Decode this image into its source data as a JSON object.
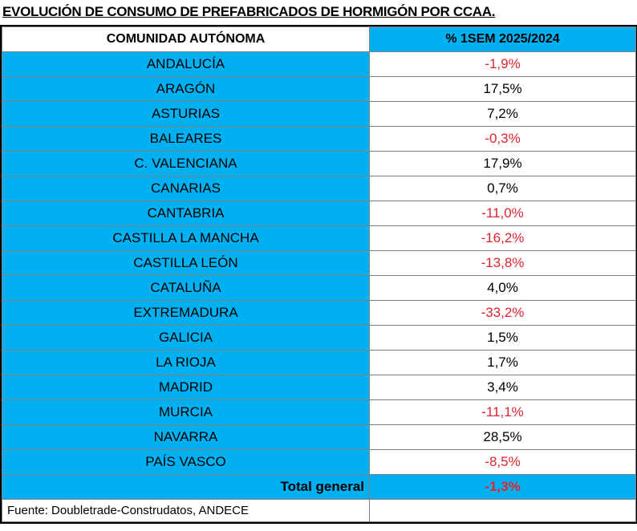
{
  "title": "EVOLUCIÓN DE CONSUMO DE PREFABRICADOS DE HORMIGÓN POR CCAA.",
  "table": {
    "header": [
      "COMUNIDAD AUTÓNOMA",
      "% 1SEM 2025/2024"
    ],
    "rows": [
      [
        "ANDALUCÍA",
        "-1,9%"
      ],
      [
        "ARAGÓN",
        "17,5%"
      ],
      [
        "ASTURIAS",
        "7,2%"
      ],
      [
        "BALEARES",
        "-0,3%"
      ],
      [
        "C. VALENCIANA",
        "17,9%"
      ],
      [
        "CANARIAS",
        "0,7%"
      ],
      [
        "CANTABRIA",
        "-11,0%"
      ],
      [
        "CASTILLA LA MANCHA",
        "-16,2%"
      ],
      [
        "CASTILLA LEÓN",
        "-13,8%"
      ],
      [
        "CATALUÑA",
        "4,0%"
      ],
      [
        "EXTREMADURA",
        "-33,2%"
      ],
      [
        "GALICIA",
        "1,5%"
      ],
      [
        "LA RIOJA",
        "1,7%"
      ],
      [
        "MADRID",
        "3,4%"
      ],
      [
        "MURCIA",
        "-11,1%"
      ],
      [
        "NAVARRA",
        "28,5%"
      ],
      [
        "PAÍS VASCO",
        "-8,5%"
      ]
    ],
    "total": [
      "Total general",
      "-1,3%"
    ]
  },
  "source": "Fuente: Doubletrade-Construdatos, ANDECE"
}
